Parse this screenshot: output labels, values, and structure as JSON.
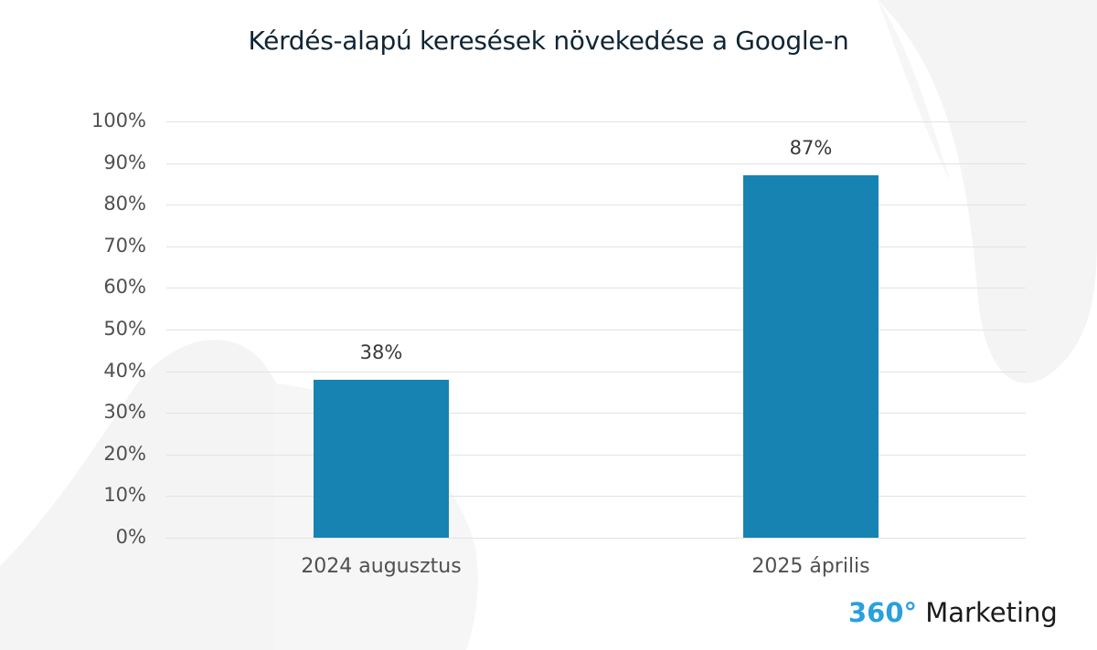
{
  "title": "Kérdés-alapú keresések növekedése a Google-n",
  "logo": {
    "accent": "360°",
    "text": " Marketing",
    "accent_color": "#2aa0dc"
  },
  "colors": {
    "bar": "#1783b2",
    "grid": "#e3e3e3",
    "title": "#0f2535"
  },
  "y_ticks": [
    "100%",
    "90%",
    "80%",
    "70%",
    "60%",
    "50%",
    "40%",
    "30%",
    "20%",
    "10%",
    "0%"
  ],
  "bars": [
    {
      "label": "2024 augusztus",
      "value_label": "38%"
    },
    {
      "label": "2025 április",
      "value_label": "87%"
    }
  ],
  "chart_data": {
    "type": "bar",
    "title": "Kérdés-alapú keresések növekedése a Google-n",
    "categories": [
      "2024 augusztus",
      "2025 április"
    ],
    "values": [
      38,
      87
    ],
    "value_labels": [
      "38%",
      "87%"
    ],
    "xlabel": "",
    "ylabel": "",
    "ylim": [
      0,
      100
    ],
    "yticks": [
      0,
      10,
      20,
      30,
      40,
      50,
      60,
      70,
      80,
      90,
      100
    ],
    "y_format": "percent",
    "grid": true,
    "legend": null
  }
}
